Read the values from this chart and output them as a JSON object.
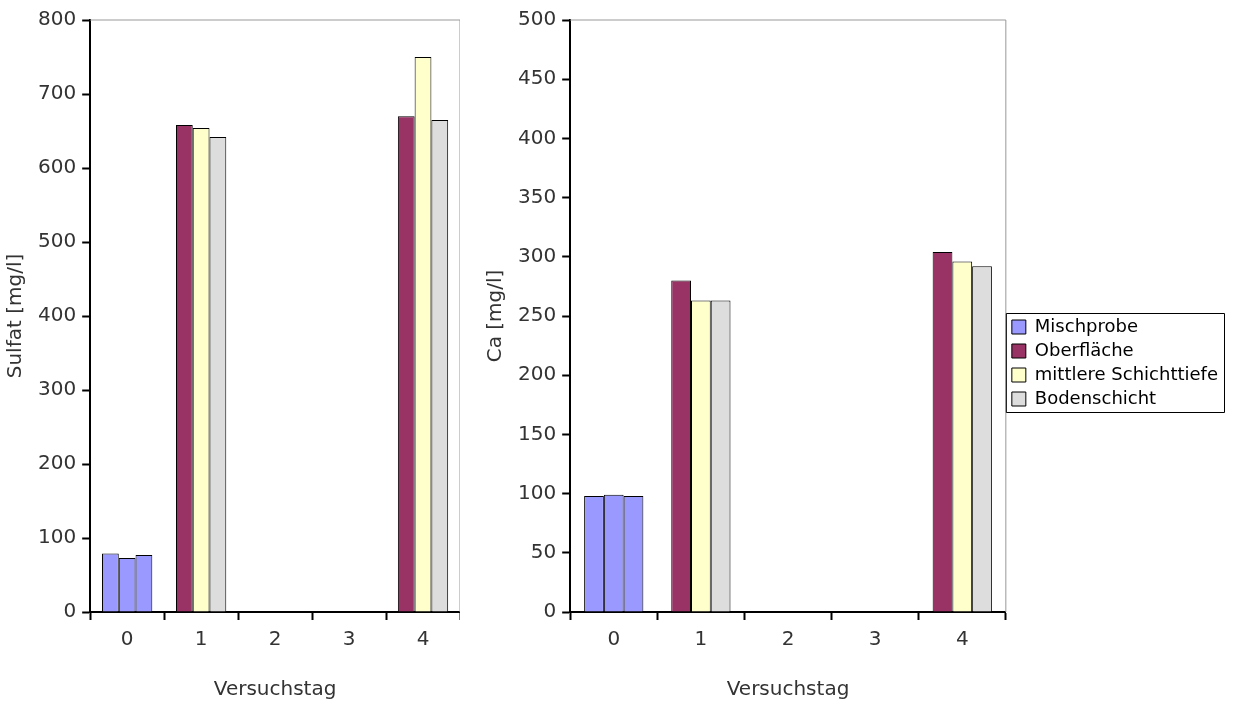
{
  "chart_data": [
    {
      "type": "bar",
      "xlabel": "Versuchstag",
      "ylabel": "Sulfat [mg/l]",
      "categories": [
        "0",
        "1",
        "2",
        "3",
        "4"
      ],
      "ylim": [
        0,
        800
      ],
      "yticks": [
        0,
        100,
        200,
        300,
        400,
        500,
        600,
        700,
        800
      ],
      "grid": false,
      "legend": false,
      "series": [
        {
          "colors": [
            "#9999ff",
            "#993366",
            "#993366",
            "#993366",
            "#993366"
          ],
          "values": [
            79,
            658,
            null,
            null,
            670
          ]
        },
        {
          "colors": [
            "#9999ff",
            "#ffffcc",
            "#ffffcc",
            "#ffffcc",
            "#ffffcc"
          ],
          "values": [
            73,
            654,
            null,
            null,
            750
          ]
        },
        {
          "colors": [
            "#9999ff",
            "#dddddd",
            "#dddddd",
            "#dddddd",
            "#dddddd"
          ],
          "values": [
            77,
            642,
            null,
            null,
            665
          ]
        }
      ]
    },
    {
      "type": "bar",
      "xlabel": "Versuchstag",
      "ylabel": "Ca [mg/l]",
      "categories": [
        "0",
        "1",
        "2",
        "3",
        "4"
      ],
      "ylim": [
        0,
        500
      ],
      "yticks": [
        0,
        50,
        100,
        150,
        200,
        250,
        300,
        350,
        400,
        450,
        500
      ],
      "grid": false,
      "legend": "right",
      "series": [
        {
          "name": "Mischprobe",
          "color": "#9999ff",
          "values": [
            null,
            null,
            null,
            null,
            null
          ]
        },
        {
          "name": "Oberfläche",
          "color": "#993366",
          "colors": [
            "#9999ff",
            "#993366",
            "#993366",
            "#993366",
            "#993366"
          ],
          "values": [
            98,
            280,
            null,
            null,
            304
          ]
        },
        {
          "name": "mittlere Schichttiefe",
          "color": "#ffffcc",
          "colors": [
            "#9999ff",
            "#ffffcc",
            "#ffffcc",
            "#ffffcc",
            "#ffffcc"
          ],
          "values": [
            99,
            263,
            null,
            null,
            296
          ]
        },
        {
          "name": "Bodenschicht",
          "color": "#dddddd",
          "colors": [
            "#9999ff",
            "#dddddd",
            "#dddddd",
            "#dddddd",
            "#dddddd"
          ],
          "values": [
            98,
            263,
            null,
            null,
            292
          ]
        }
      ]
    }
  ]
}
